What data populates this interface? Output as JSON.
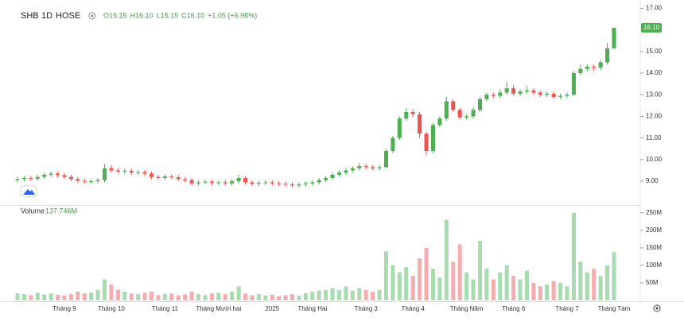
{
  "chart_data": {
    "type": "candlestick",
    "symbol": "SHB",
    "interval": "1D",
    "exchange": "HOSE",
    "legend_values": [
      "O15.15",
      "H16.10",
      "L15.15",
      "C16.10",
      "+1.05 (+6.98%)"
    ],
    "categories": [
      null,
      null,
      null,
      null,
      null,
      null,
      null,
      "Tháng 9",
      null,
      null,
      null,
      null,
      null,
      null,
      "Tháng 10",
      null,
      null,
      null,
      null,
      null,
      null,
      null,
      "Tháng 11",
      null,
      null,
      null,
      null,
      null,
      null,
      null,
      "Tháng Mười hai",
      null,
      null,
      null,
      null,
      null,
      null,
      null,
      "2025",
      null,
      null,
      null,
      null,
      null,
      "Tháng Hai",
      null,
      null,
      null,
      null,
      null,
      null,
      null,
      "Tháng 3",
      null,
      null,
      null,
      null,
      null,
      null,
      "Tháng 4",
      null,
      null,
      null,
      null,
      null,
      null,
      null,
      "Tháng Năm",
      null,
      null,
      null,
      null,
      null,
      null,
      "Tháng 6",
      null,
      null,
      null,
      null,
      null,
      null,
      null,
      "Tháng 7",
      null,
      null,
      null,
      null,
      null,
      null,
      "Tháng Tám"
    ],
    "open": [
      9.05,
      9.1,
      9.15,
      9.12,
      9.2,
      9.3,
      9.35,
      9.28,
      9.2,
      9.1,
      9.02,
      8.98,
      9.0,
      9.05,
      9.6,
      9.5,
      9.45,
      9.48,
      9.4,
      9.42,
      9.35,
      9.2,
      9.15,
      9.22,
      9.18,
      9.1,
      9.05,
      8.9,
      8.95,
      8.98,
      8.92,
      8.95,
      8.9,
      9.0,
      9.15,
      8.95,
      8.88,
      8.92,
      8.95,
      8.9,
      8.88,
      8.85,
      8.8,
      8.85,
      8.9,
      8.95,
      9.05,
      9.15,
      9.3,
      9.4,
      9.5,
      9.6,
      9.7,
      9.65,
      9.6,
      9.65,
      10.4,
      11.0,
      11.9,
      12.2,
      12.1,
      11.2,
      10.4,
      11.6,
      11.9,
      12.7,
      12.3,
      11.95,
      12.0,
      12.3,
      12.8,
      13.0,
      12.95,
      13.1,
      13.3,
      13.05,
      13.15,
      13.2,
      13.1,
      13.0,
      13.05,
      12.9,
      12.95,
      13.0,
      14.0,
      14.2,
      14.3,
      14.25,
      14.5,
      15.15
    ],
    "high": [
      9.2,
      9.25,
      9.25,
      9.3,
      9.4,
      9.45,
      9.45,
      9.38,
      9.3,
      9.2,
      9.12,
      9.1,
      9.15,
      9.8,
      9.75,
      9.6,
      9.58,
      9.58,
      9.52,
      9.52,
      9.45,
      9.3,
      9.32,
      9.32,
      9.28,
      9.2,
      9.15,
      9.05,
      9.08,
      9.08,
      9.05,
      9.05,
      9.1,
      9.3,
      9.25,
      9.05,
      9.02,
      9.05,
      9.05,
      9.0,
      8.98,
      8.95,
      8.95,
      9.0,
      9.05,
      9.15,
      9.25,
      9.4,
      9.5,
      9.6,
      9.7,
      9.85,
      9.8,
      9.75,
      9.75,
      10.5,
      11.1,
      12.0,
      12.4,
      12.35,
      12.2,
      11.3,
      11.7,
      12.0,
      12.9,
      12.8,
      12.4,
      12.1,
      12.4,
      12.9,
      13.1,
      13.1,
      13.25,
      13.6,
      13.45,
      13.25,
      13.4,
      13.3,
      13.2,
      13.15,
      13.15,
      13.05,
      13.1,
      14.1,
      14.4,
      14.4,
      14.4,
      14.6,
      15.4,
      16.1
    ],
    "low": [
      8.95,
      9.0,
      9.02,
      9.02,
      9.1,
      9.2,
      9.18,
      9.1,
      9.0,
      8.92,
      8.88,
      8.88,
      8.9,
      8.95,
      9.4,
      9.35,
      9.35,
      9.3,
      9.3,
      9.25,
      9.1,
      9.05,
      9.05,
      9.08,
      9.0,
      8.95,
      8.8,
      8.8,
      8.85,
      8.82,
      8.82,
      8.8,
      8.8,
      8.9,
      8.85,
      8.78,
      8.78,
      8.82,
      8.8,
      8.78,
      8.75,
      8.7,
      8.7,
      8.75,
      8.8,
      8.85,
      8.95,
      9.05,
      9.2,
      9.3,
      9.4,
      9.5,
      9.55,
      9.5,
      9.5,
      9.6,
      10.3,
      10.9,
      11.8,
      11.95,
      11.0,
      10.2,
      10.3,
      11.5,
      11.8,
      12.2,
      11.85,
      11.85,
      11.9,
      12.2,
      12.7,
      12.85,
      12.85,
      13.0,
      12.95,
      12.95,
      13.05,
      13.0,
      12.9,
      12.9,
      12.8,
      12.8,
      12.85,
      12.95,
      13.9,
      14.1,
      14.1,
      14.15,
      14.4,
      15.15
    ],
    "close": [
      9.1,
      9.15,
      9.12,
      9.2,
      9.3,
      9.35,
      9.28,
      9.2,
      9.1,
      9.02,
      8.98,
      9.0,
      9.05,
      9.6,
      9.5,
      9.45,
      9.48,
      9.4,
      9.42,
      9.35,
      9.2,
      9.15,
      9.22,
      9.18,
      9.1,
      9.05,
      8.9,
      8.95,
      8.98,
      8.92,
      8.95,
      8.9,
      9.0,
      9.15,
      8.95,
      8.88,
      8.92,
      8.95,
      8.9,
      8.88,
      8.85,
      8.8,
      8.85,
      8.9,
      8.95,
      9.05,
      9.15,
      9.3,
      9.4,
      9.5,
      9.6,
      9.7,
      9.65,
      9.6,
      9.65,
      10.4,
      11.0,
      11.9,
      12.2,
      12.1,
      11.2,
      10.4,
      11.6,
      11.9,
      12.7,
      12.3,
      11.95,
      12.0,
      12.3,
      12.8,
      13.0,
      12.95,
      13.1,
      13.3,
      13.05,
      13.15,
      13.2,
      13.1,
      13.0,
      13.05,
      12.9,
      12.95,
      13.0,
      14.0,
      14.2,
      14.3,
      14.25,
      14.5,
      15.15,
      16.1
    ],
    "volume_name": "Volume",
    "volume_last_label": "137.746M",
    "volume": [
      20,
      18,
      15,
      22,
      17,
      20,
      16,
      14,
      18,
      25,
      20,
      22,
      30,
      60,
      45,
      30,
      25,
      20,
      18,
      22,
      25,
      15,
      18,
      20,
      15,
      17,
      25,
      18,
      15,
      20,
      22,
      18,
      25,
      40,
      20,
      15,
      18,
      14,
      16,
      12,
      15,
      18,
      14,
      20,
      25,
      28,
      30,
      35,
      30,
      40,
      28,
      35,
      30,
      25,
      30,
      140,
      100,
      80,
      95,
      70,
      120,
      150,
      90,
      65,
      230,
      110,
      160,
      80,
      60,
      170,
      90,
      60,
      80,
      100,
      70,
      60,
      85,
      50,
      40,
      45,
      55,
      50,
      40,
      250,
      110,
      80,
      90,
      70,
      100,
      137.746
    ],
    "ylim": [
      7.9,
      17.2
    ],
    "yticks": [
      {
        "value": 9,
        "label": "9.00"
      },
      {
        "value": 10,
        "label": "10.00"
      },
      {
        "value": 11,
        "label": "11.00"
      },
      {
        "value": 12,
        "label": "12.00"
      },
      {
        "value": 13,
        "label": "13.00"
      },
      {
        "value": 14,
        "label": "14.00"
      },
      {
        "value": 15,
        "label": "15.00"
      },
      {
        "value": 17,
        "label": "17.00"
      }
    ],
    "last_price": {
      "value": 16.1,
      "label": "16.10"
    },
    "volume_ylim": [
      0,
      270
    ],
    "volume_yticks": [
      {
        "value": 50,
        "label": "50M"
      },
      {
        "value": 100,
        "label": "100M"
      },
      {
        "value": 150,
        "label": "150M"
      },
      {
        "value": 200,
        "label": "200M"
      },
      {
        "value": 250,
        "label": "250M"
      }
    ],
    "up_color": "#4caf50",
    "down_color": "#ef5350",
    "volume_up_color": "#a8dbb0",
    "volume_down_color": "#f5aeb0"
  }
}
